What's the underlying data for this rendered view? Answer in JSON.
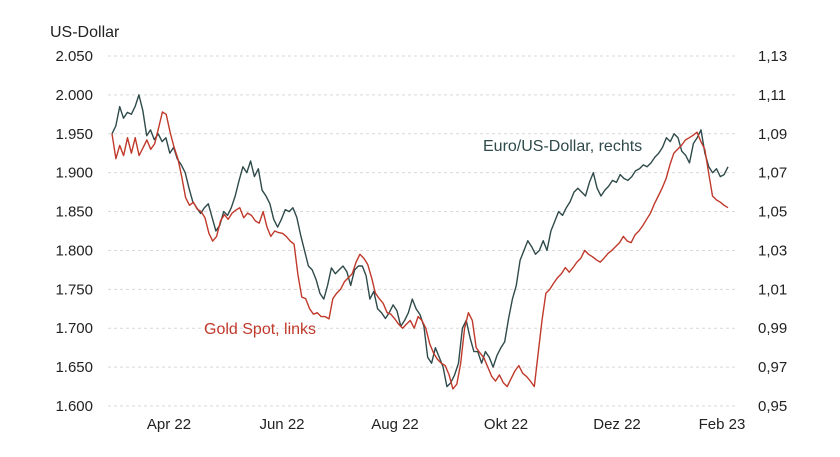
{
  "chart_data": {
    "type": "line",
    "y_left_label": "US-Dollar",
    "y_left_ticks": [
      "2.050",
      "2.000",
      "1.950",
      "1.900",
      "1.850",
      "1.800",
      "1.750",
      "1.700",
      "1.650",
      "1.600"
    ],
    "y_left_range": [
      1600,
      2050
    ],
    "y_right_ticks": [
      "1,13",
      "1,11",
      "1,09",
      "1,07",
      "1,05",
      "1,03",
      "1,01",
      "0,99",
      "0,97",
      "0,95"
    ],
    "y_right_range": [
      0.95,
      1.13
    ],
    "x_ticks": [
      "Apr 22",
      "Jun 22",
      "Aug 22",
      "Okt 22",
      "Dez 22",
      "Feb 23"
    ],
    "grid": "horizontal-dashed",
    "colors": {
      "gold": "#c0392b",
      "eurusd": "#2f4a4a",
      "grid": "#d9d9d9"
    },
    "series": [
      {
        "name": "Gold Spot, links",
        "axis": "left",
        "color": "#c0392b",
        "values": [
          1950,
          1918,
          1935,
          1922,
          1945,
          1925,
          1945,
          1922,
          1932,
          1942,
          1930,
          1937,
          1957,
          1978,
          1975,
          1952,
          1933,
          1918,
          1895,
          1868,
          1858,
          1862,
          1853,
          1850,
          1842,
          1822,
          1812,
          1818,
          1838,
          1846,
          1840,
          1848,
          1852,
          1855,
          1842,
          1848,
          1845,
          1838,
          1835,
          1850,
          1830,
          1818,
          1825,
          1823,
          1822,
          1818,
          1812,
          1808,
          1768,
          1740,
          1738,
          1725,
          1718,
          1720,
          1715,
          1715,
          1712,
          1738,
          1745,
          1750,
          1760,
          1765,
          1770,
          1785,
          1795,
          1790,
          1782,
          1765,
          1745,
          1738,
          1732,
          1720,
          1718,
          1712,
          1705,
          1700,
          1705,
          1710,
          1700,
          1715,
          1710,
          1700,
          1680,
          1668,
          1660,
          1655,
          1652,
          1640,
          1622,
          1628,
          1655,
          1700,
          1720,
          1710,
          1675,
          1668,
          1662,
          1650,
          1638,
          1632,
          1640,
          1630,
          1625,
          1635,
          1645,
          1652,
          1642,
          1638,
          1632,
          1625,
          1668,
          1710,
          1745,
          1750,
          1758,
          1765,
          1770,
          1778,
          1772,
          1778,
          1785,
          1790,
          1800,
          1795,
          1792,
          1788,
          1785,
          1790,
          1796,
          1800,
          1805,
          1810,
          1818,
          1812,
          1810,
          1820,
          1825,
          1832,
          1840,
          1848,
          1860,
          1870,
          1880,
          1892,
          1910,
          1925,
          1930,
          1935,
          1942,
          1945,
          1948,
          1952,
          1940,
          1930,
          1900,
          1870,
          1865,
          1862,
          1858,
          1855
        ]
      },
      {
        "name": "Euro/US-Dollar, rechts",
        "axis": "right",
        "color": "#2f4a4a",
        "values": [
          1.09,
          1.094,
          1.104,
          1.098,
          1.101,
          1.1,
          1.104,
          1.11,
          1.102,
          1.089,
          1.092,
          1.087,
          1.09,
          1.086,
          1.088,
          1.08,
          1.083,
          1.077,
          1.074,
          1.07,
          1.062,
          1.055,
          1.052,
          1.049,
          1.052,
          1.054,
          1.047,
          1.04,
          1.043,
          1.05,
          1.048,
          1.052,
          1.058,
          1.066,
          1.073,
          1.07,
          1.076,
          1.068,
          1.072,
          1.061,
          1.058,
          1.054,
          1.046,
          1.042,
          1.046,
          1.051,
          1.05,
          1.052,
          1.047,
          1.038,
          1.03,
          1.022,
          1.02,
          1.015,
          1.008,
          1.005,
          1.012,
          1.021,
          1.018,
          1.02,
          1.022,
          1.019,
          1.012,
          1.02,
          1.022,
          1.022,
          1.017,
          1.005,
          1.009,
          1.0,
          0.998,
          0.995,
          0.998,
          1.002,
          0.999,
          0.991,
          0.994,
          0.998,
          1.005,
          1.0,
          0.997,
          0.991,
          0.975,
          0.972,
          0.98,
          0.975,
          0.97,
          0.96,
          0.962,
          0.966,
          0.972,
          0.99,
          0.994,
          0.985,
          0.978,
          0.978,
          0.972,
          0.978,
          0.975,
          0.97,
          0.976,
          0.98,
          0.983,
          0.995,
          1.005,
          1.012,
          1.025,
          1.03,
          1.035,
          1.032,
          1.028,
          1.03,
          1.035,
          1.03,
          1.04,
          1.045,
          1.05,
          1.048,
          1.052,
          1.055,
          1.06,
          1.062,
          1.06,
          1.058,
          1.065,
          1.07,
          1.062,
          1.058,
          1.061,
          1.063,
          1.066,
          1.065,
          1.069,
          1.067,
          1.066,
          1.068,
          1.071,
          1.072,
          1.074,
          1.073,
          1.075,
          1.078,
          1.08,
          1.083,
          1.088,
          1.086,
          1.09,
          1.088,
          1.081,
          1.079,
          1.075,
          1.085,
          1.088,
          1.092,
          1.08,
          1.073,
          1.07,
          1.072,
          1.068,
          1.069,
          1.073
        ]
      }
    ]
  }
}
